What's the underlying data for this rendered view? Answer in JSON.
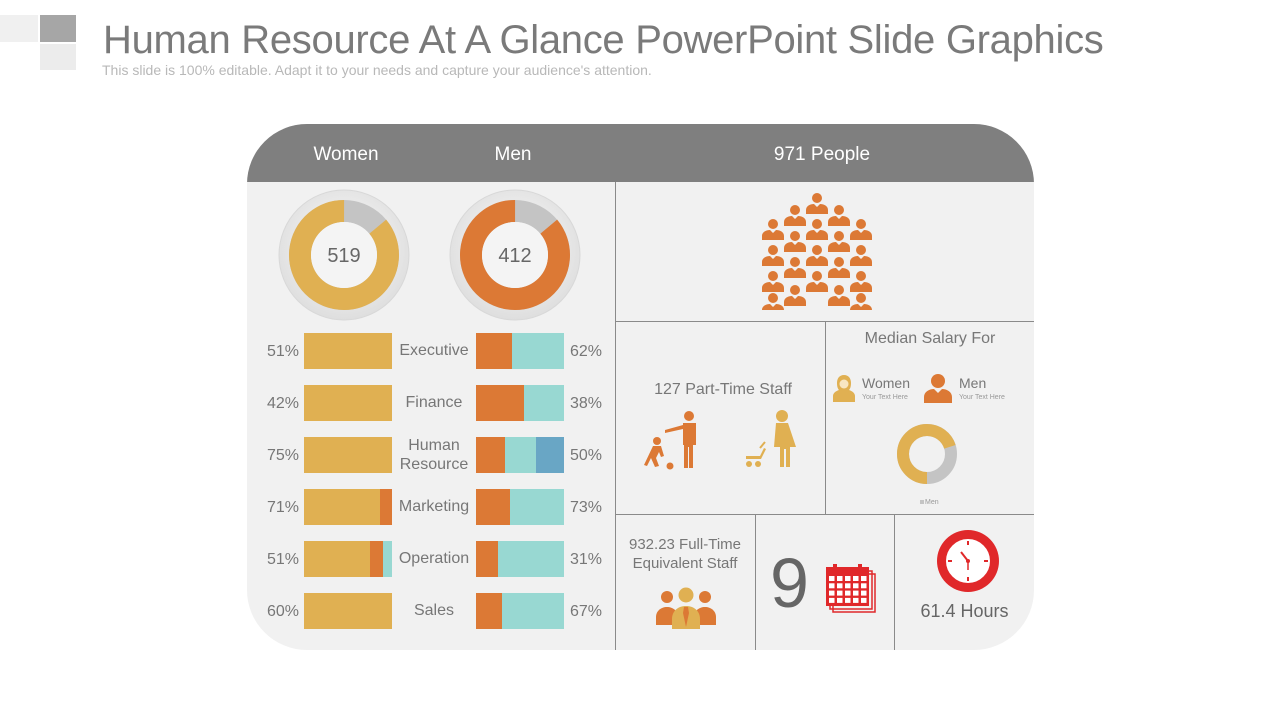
{
  "slide": {
    "title": "Human Resource At A Glance PowerPoint Slide Graphics",
    "subtitle": "This slide is 100% editable. Adapt it to your needs and capture your audience's attention."
  },
  "header": {
    "women_label": "Women",
    "men_label": "Men",
    "people_label": "971 People"
  },
  "donuts": {
    "women": {
      "value": "519",
      "fill_fraction": 0.86,
      "color": "#e0b052"
    },
    "men": {
      "value": "412",
      "fill_fraction": 0.86,
      "color": "#dc7935"
    }
  },
  "departments": [
    {
      "name": "Executive",
      "women_pct": "51%",
      "men_pct": "62%",
      "women_orange": 0,
      "women_teal": 0,
      "men_orange": 0.41,
      "men_teal": 0.59,
      "men_blue": 0
    },
    {
      "name": "Finance",
      "women_pct": "42%",
      "men_pct": "38%",
      "women_orange": 0,
      "women_teal": 0,
      "men_orange": 0.55,
      "men_teal": 0.45,
      "men_blue": 0
    },
    {
      "name": "Human Resource",
      "women_pct": "75%",
      "men_pct": "50%",
      "women_orange": 0,
      "women_teal": 0,
      "men_orange": 0.33,
      "men_teal": 0.35,
      "men_blue": 0.32
    },
    {
      "name": "Marketing",
      "women_pct": "71%",
      "men_pct": "73%",
      "women_orange": 0.14,
      "women_teal": 0,
      "men_orange": 0.39,
      "men_teal": 0.61,
      "men_blue": 0
    },
    {
      "name": "Operation",
      "women_pct": "51%",
      "men_pct": "31%",
      "women_orange": 0.15,
      "women_teal": 0.1,
      "men_orange": 0.25,
      "men_teal": 0.75,
      "men_blue": 0
    },
    {
      "name": "Sales",
      "women_pct": "60%",
      "men_pct": "67%",
      "women_orange": 0,
      "women_teal": 0,
      "men_orange": 0.3,
      "men_teal": 0.7,
      "men_blue": 0
    }
  ],
  "part_time": {
    "label": "127 Part-Time Staff"
  },
  "salary": {
    "title": "Median Salary For",
    "women_label": "Women",
    "women_sub": "Your Text Here",
    "men_label": "Men",
    "men_sub": "Your Text Here",
    "legend": "Men",
    "women_fraction": 0.7
  },
  "full_time": {
    "label": "932.23 Full-Time Equivalent Staff"
  },
  "calendar": {
    "value": "9"
  },
  "hours": {
    "label": "61.4 Hours"
  },
  "colors": {
    "gold": "#e0b052",
    "orange": "#dc7935",
    "teal": "#98d8d2",
    "blue": "#69a6c5",
    "gray": "#c4c4c4",
    "red": "#e0282a"
  }
}
